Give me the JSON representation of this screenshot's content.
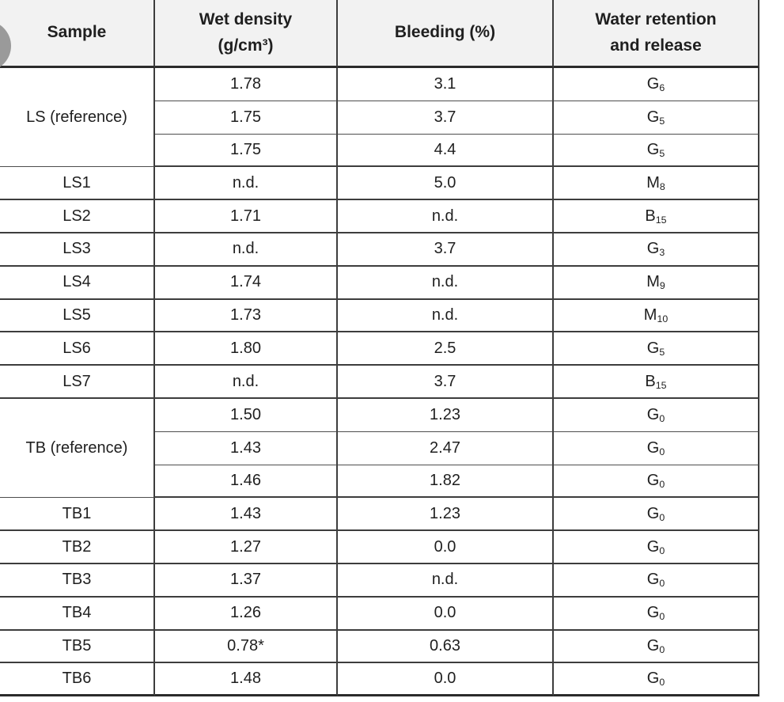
{
  "decoration": {
    "circle_color": "#9a9a9a"
  },
  "table": {
    "header_bg": "#f2f2f2",
    "border_color": "#3d3d3d",
    "headers": {
      "sample": "Sample",
      "wet_density_line1": "Wet density",
      "wet_density_line2": "(g/cm³)",
      "bleeding": "Bleeding (%)",
      "retention_line1": "Water retention",
      "retention_line2": "and release"
    },
    "groups": [
      {
        "sample": "LS (reference)",
        "rows": [
          {
            "density": "1.78",
            "bleeding": "3.1",
            "ret_base": "G",
            "ret_sub": "6"
          },
          {
            "density": "1.75",
            "bleeding": "3.7",
            "ret_base": "G",
            "ret_sub": "5"
          },
          {
            "density": "1.75",
            "bleeding": "4.4",
            "ret_base": "G",
            "ret_sub": "5"
          }
        ]
      },
      {
        "sample": "LS1",
        "rows": [
          {
            "density": "n.d.",
            "bleeding": "5.0",
            "ret_base": "M",
            "ret_sub": "8"
          }
        ]
      },
      {
        "sample": "LS2",
        "rows": [
          {
            "density": "1.71",
            "bleeding": "n.d.",
            "ret_base": "B",
            "ret_sub": "15"
          }
        ]
      },
      {
        "sample": "LS3",
        "rows": [
          {
            "density": "n.d.",
            "bleeding": "3.7",
            "ret_base": "G",
            "ret_sub": "3"
          }
        ]
      },
      {
        "sample": "LS4",
        "rows": [
          {
            "density": "1.74",
            "bleeding": "n.d.",
            "ret_base": "M",
            "ret_sub": "9"
          }
        ]
      },
      {
        "sample": "LS5",
        "rows": [
          {
            "density": "1.73",
            "bleeding": "n.d.",
            "ret_base": "M",
            "ret_sub": "10"
          }
        ]
      },
      {
        "sample": "LS6",
        "rows": [
          {
            "density": "1.80",
            "bleeding": "2.5",
            "ret_base": "G",
            "ret_sub": "5"
          }
        ]
      },
      {
        "sample": "LS7",
        "rows": [
          {
            "density": "n.d.",
            "bleeding": "3.7",
            "ret_base": "B",
            "ret_sub": "15"
          }
        ]
      },
      {
        "sample": "TB (reference)",
        "rows": [
          {
            "density": "1.50",
            "bleeding": "1.23",
            "ret_base": "G",
            "ret_sub": "0"
          },
          {
            "density": "1.43",
            "bleeding": "2.47",
            "ret_base": "G",
            "ret_sub": "0"
          },
          {
            "density": "1.46",
            "bleeding": "1.82",
            "ret_base": "G",
            "ret_sub": "0"
          }
        ]
      },
      {
        "sample": "TB1",
        "rows": [
          {
            "density": "1.43",
            "bleeding": "1.23",
            "ret_base": "G",
            "ret_sub": "0"
          }
        ]
      },
      {
        "sample": "TB2",
        "rows": [
          {
            "density": "1.27",
            "bleeding": "0.0",
            "ret_base": "G",
            "ret_sub": "0"
          }
        ]
      },
      {
        "sample": "TB3",
        "rows": [
          {
            "density": "1.37",
            "bleeding": "n.d.",
            "ret_base": "G",
            "ret_sub": "0"
          }
        ]
      },
      {
        "sample": "TB4",
        "rows": [
          {
            "density": "1.26",
            "bleeding": "0.0",
            "ret_base": "G",
            "ret_sub": "0"
          }
        ]
      },
      {
        "sample": "TB5",
        "rows": [
          {
            "density": "0.78*",
            "bleeding": "0.63",
            "ret_base": "G",
            "ret_sub": "0"
          }
        ]
      },
      {
        "sample": "TB6",
        "rows": [
          {
            "density": "1.48",
            "bleeding": "0.0",
            "ret_base": "G",
            "ret_sub": "0"
          }
        ]
      }
    ]
  }
}
